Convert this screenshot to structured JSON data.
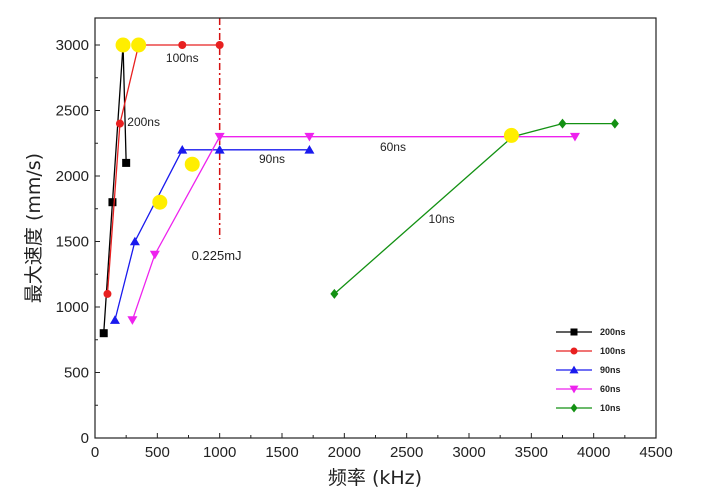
{
  "chart_data": {
    "type": "line",
    "xlabel": "频率 (kHz)",
    "ylabel": "最大速度 (mm/s)",
    "xlim": [
      0,
      4500
    ],
    "ylim": [
      0,
      3200
    ],
    "xticks": [
      "0",
      "500",
      "1000",
      "1500",
      "2000",
      "2500",
      "3000",
      "3500",
      "4000",
      "4500"
    ],
    "yticks": [
      "0",
      "500",
      "1000",
      "1500",
      "2000",
      "2500",
      "3000"
    ],
    "legend_position": "bottom-right",
    "series": [
      {
        "name": "200ns",
        "color": "#000000",
        "marker": "square",
        "points": [
          [
            70,
            800
          ],
          [
            140,
            1800
          ],
          [
            225,
            3000
          ],
          [
            250,
            2100
          ]
        ]
      },
      {
        "name": "100ns",
        "color": "#e82020",
        "marker": "circle",
        "points": [
          [
            100,
            1100
          ],
          [
            200,
            2400
          ],
          [
            350,
            3000
          ],
          [
            700,
            3000
          ],
          [
            1000,
            3000
          ]
        ]
      },
      {
        "name": "90ns",
        "color": "#1a1aee",
        "marker": "triangle-up",
        "points": [
          [
            160,
            900
          ],
          [
            320,
            1500
          ],
          [
            700,
            2200
          ],
          [
            1000,
            2200
          ],
          [
            1720,
            2200
          ]
        ]
      },
      {
        "name": "60ns",
        "color": "#ee22ee",
        "marker": "triangle-down",
        "points": [
          [
            300,
            900
          ],
          [
            480,
            1400
          ],
          [
            1000,
            2300
          ],
          [
            1720,
            2300
          ],
          [
            3850,
            2300
          ]
        ]
      },
      {
        "name": "10ns",
        "color": "#139113",
        "marker": "diamond",
        "points": [
          [
            1920,
            1100
          ],
          [
            3350,
            2300
          ],
          [
            3750,
            2400
          ],
          [
            4170,
            2400
          ]
        ]
      }
    ],
    "highlights": {
      "color": "#ffee00",
      "points": [
        [
          225,
          3000
        ],
        [
          350,
          3000
        ],
        [
          520,
          1800
        ],
        [
          780,
          2090
        ],
        [
          3340,
          2310
        ]
      ]
    },
    "reference_line": {
      "x": 1000,
      "y_range": [
        1520,
        3200
      ],
      "color": "#d41010",
      "label": "0.225mJ"
    },
    "annotations": [
      {
        "text": "100ns",
        "x": 700,
        "y": 2870
      },
      {
        "text": "200ns",
        "x": 390,
        "y": 2380
      },
      {
        "text": "90ns",
        "x": 1420,
        "y": 2100
      },
      {
        "text": "60ns",
        "x": 2390,
        "y": 2190
      },
      {
        "text": "10ns",
        "x": 2780,
        "y": 1640
      }
    ]
  }
}
